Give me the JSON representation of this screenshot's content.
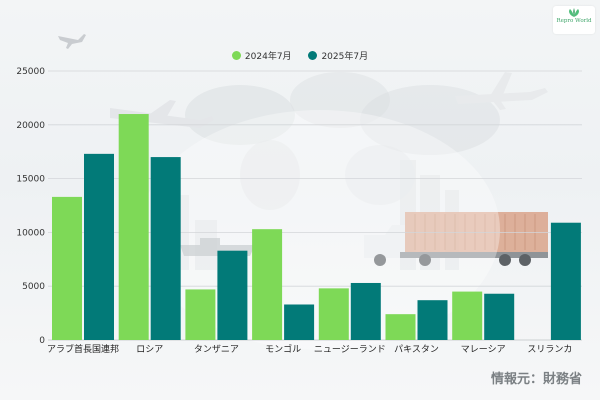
{
  "logo": {
    "text": "Repro World",
    "color": "#3fa56a"
  },
  "source_label": "情報元：財務省",
  "colors": {
    "series_2024": "#7ed957",
    "series_2025": "#027a78"
  },
  "chart_data": {
    "type": "bar",
    "categories": [
      "アラブ首長国連邦",
      "ロシア",
      "タンザニア",
      "モンゴル",
      "ニュージーランド",
      "パキスタン",
      "マレーシア",
      "スリランカ"
    ],
    "series": [
      {
        "name": "2024年7月",
        "color": "#7ed957",
        "values": [
          13300,
          21000,
          4700,
          10300,
          4800,
          2400,
          4500,
          null
        ]
      },
      {
        "name": "2025年7月",
        "color": "#027a78",
        "values": [
          17300,
          17000,
          8300,
          3300,
          5300,
          3700,
          4300,
          10900
        ]
      }
    ],
    "yticks": [
      "0",
      "5000",
      "10000",
      "15000",
      "20000",
      "25000"
    ],
    "ylim": [
      0,
      25000
    ],
    "grid": true,
    "legend_position": "top-center"
  }
}
